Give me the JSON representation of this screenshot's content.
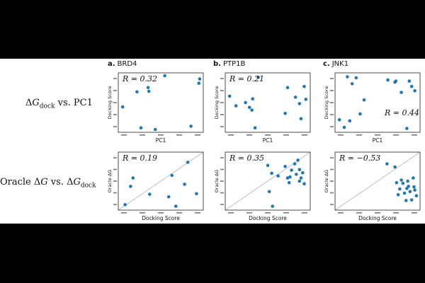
{
  "row_labels": [
    "ΔG_dock vs. PC1",
    "Oracle ΔG vs. ΔG_dock"
  ],
  "columns": [
    {
      "letter": "a.",
      "name": "BRD4"
    },
    {
      "letter": "b.",
      "name": "PTP1B"
    },
    {
      "letter": "c.",
      "name": "JNK1"
    }
  ],
  "chart_data": [
    {
      "type": "scatter",
      "panel": "a-top",
      "xlabel": "PC1",
      "ylabel": "Docking Score",
      "annotation": "R = 0.32",
      "annotation_position": "top-left",
      "diagonal": false,
      "points": [
        [
          0.02,
          0.42
        ],
        [
          0.2,
          0.7
        ],
        [
          0.25,
          0.03
        ],
        [
          0.34,
          0.78
        ],
        [
          0.35,
          0.71
        ],
        [
          0.43,
          0.0
        ],
        [
          0.55,
          1.0
        ],
        [
          0.88,
          0.06
        ],
        [
          0.98,
          0.86
        ],
        [
          0.99,
          0.94
        ]
      ]
    },
    {
      "type": "scatter",
      "panel": "b-top",
      "xlabel": "PC1",
      "ylabel": "Docking Score",
      "annotation": "R = 0.21",
      "annotation_position": "top-left",
      "diagonal": false,
      "points": [
        [
          0.02,
          0.62
        ],
        [
          0.1,
          0.44
        ],
        [
          0.22,
          0.5
        ],
        [
          0.27,
          0.41
        ],
        [
          0.3,
          0.36
        ],
        [
          0.31,
          0.57
        ],
        [
          0.34,
          0.03
        ],
        [
          0.38,
          0.97
        ],
        [
          0.72,
          0.3
        ],
        [
          0.75,
          0.78
        ],
        [
          0.85,
          0.6
        ],
        [
          0.9,
          0.48
        ],
        [
          0.92,
          0.2
        ],
        [
          0.96,
          0.8
        ],
        [
          0.98,
          0.56
        ]
      ]
    },
    {
      "type": "scatter",
      "panel": "c-top",
      "xlabel": "PC1",
      "ylabel": "Docking Score",
      "annotation": "R = 0.44",
      "annotation_position": "bottom-right",
      "diagonal": false,
      "points": [
        [
          0.02,
          0.18
        ],
        [
          0.08,
          0.04
        ],
        [
          0.12,
          0.98
        ],
        [
          0.15,
          0.16
        ],
        [
          0.18,
          0.85
        ],
        [
          0.23,
          0.96
        ],
        [
          0.28,
          0.29
        ],
        [
          0.33,
          0.55
        ],
        [
          0.63,
          0.92
        ],
        [
          0.72,
          0.88
        ],
        [
          0.73,
          0.9
        ],
        [
          0.8,
          0.69
        ],
        [
          0.87,
          0.02
        ],
        [
          0.9,
          0.9
        ],
        [
          0.93,
          0.8
        ],
        [
          0.97,
          0.72
        ]
      ]
    },
    {
      "type": "scatter",
      "panel": "a-bottom",
      "xlabel": "Docking Score",
      "ylabel": "Oracle ΔG",
      "annotation": "R = 0.19",
      "annotation_position": "top-left",
      "diagonal": true,
      "points": [
        [
          0.05,
          0.05
        ],
        [
          0.12,
          0.4
        ],
        [
          0.15,
          0.56
        ],
        [
          0.36,
          0.25
        ],
        [
          0.6,
          0.2
        ],
        [
          0.64,
          0.61
        ],
        [
          0.69,
          0.02
        ],
        [
          0.8,
          0.44
        ],
        [
          0.84,
          0.86
        ],
        [
          0.95,
          0.26
        ]
      ]
    },
    {
      "type": "scatter",
      "panel": "b-bottom",
      "xlabel": "Docking Score",
      "ylabel": "Oracle ΔG",
      "annotation": "R = 0.35",
      "annotation_position": "top-left",
      "diagonal": true,
      "points": [
        [
          0.5,
          0.8
        ],
        [
          0.52,
          0.3
        ],
        [
          0.55,
          0.65
        ],
        [
          0.56,
          0.02
        ],
        [
          0.63,
          0.6
        ],
        [
          0.72,
          0.78
        ],
        [
          0.75,
          0.56
        ],
        [
          0.77,
          0.47
        ],
        [
          0.78,
          0.58
        ],
        [
          0.8,
          0.71
        ],
        [
          0.84,
          0.83
        ],
        [
          0.86,
          0.63
        ],
        [
          0.88,
          0.9
        ],
        [
          0.9,
          0.5
        ],
        [
          0.9,
          0.72
        ],
        [
          0.92,
          0.56
        ],
        [
          0.94,
          0.66
        ],
        [
          0.96,
          0.45
        ]
      ]
    },
    {
      "type": "scatter",
      "panel": "c-bottom",
      "xlabel": "Docking Score",
      "ylabel": "Oracle ΔG",
      "annotation": "R = −0.53",
      "annotation_position": "top-left",
      "diagonal": true,
      "points": [
        [
          0.62,
          0.83
        ],
        [
          0.72,
          0.77
        ],
        [
          0.74,
          0.47
        ],
        [
          0.76,
          0.24
        ],
        [
          0.78,
          0.35
        ],
        [
          0.8,
          0.52
        ],
        [
          0.82,
          0.46
        ],
        [
          0.84,
          0.27
        ],
        [
          0.86,
          0.13
        ],
        [
          0.87,
          0.36
        ],
        [
          0.88,
          0.5
        ],
        [
          0.89,
          0.4
        ],
        [
          0.91,
          0.3
        ],
        [
          0.93,
          0.14
        ],
        [
          0.95,
          0.56
        ],
        [
          0.96,
          0.39
        ],
        [
          0.97,
          0.33
        ],
        [
          0.99,
          0.22
        ]
      ]
    }
  ]
}
